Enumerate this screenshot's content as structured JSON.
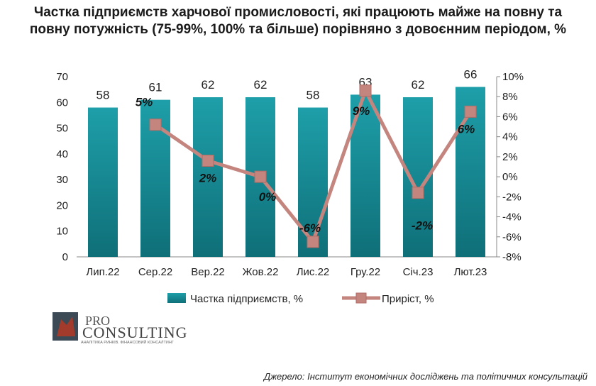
{
  "chart_data": {
    "type": "bar+line",
    "title": "Частка підприємств харчової промисловості, які працюють майже на повну та повну потужність (75-99%, 100% та більше) порівняно з довоєнним періодом, %",
    "categories": [
      "Лип.22",
      "Сер.22",
      "Вер.22",
      "Жов.22",
      "Лис.22",
      "Гру.22",
      "Січ.23",
      "Лют.23"
    ],
    "series": [
      {
        "name": "Частка підприємств, %",
        "type": "bar",
        "axis": "left",
        "color": "#1a8f9a",
        "values": [
          58,
          61,
          62,
          62,
          58,
          63,
          62,
          66
        ],
        "labels": [
          "58",
          "61",
          "62",
          "62",
          "58",
          "63",
          "62",
          "66"
        ]
      },
      {
        "name": "Приріст, %",
        "type": "line",
        "axis": "right",
        "color": "#c4857f",
        "values": [
          null,
          5.2,
          1.6,
          0,
          -6.5,
          8.6,
          -1.6,
          6.5
        ],
        "labels": [
          "",
          "5%",
          "2%",
          "0%",
          "-6%",
          "9%",
          "-2%",
          "6%"
        ]
      }
    ],
    "y_left": {
      "min": 0,
      "max": 70,
      "ticks": [
        "0",
        "10",
        "20",
        "30",
        "40",
        "50",
        "60",
        "70"
      ]
    },
    "y_right": {
      "min": -8,
      "max": 10,
      "ticks": [
        "-8%",
        "-6%",
        "-4%",
        "-2%",
        "0%",
        "2%",
        "4%",
        "6%",
        "8%",
        "10%"
      ]
    },
    "grid": false,
    "legend_position": "bottom"
  },
  "logo": {
    "line1": "PRO",
    "line2": "CONSULTING",
    "tagline": "АНАЛІТИКА РИНКІВ. ФІНАНСОВИЙ КОНСАЛТИНГ"
  },
  "source": "Джерело: Інститут економічних досліджень та політичних консультацій"
}
